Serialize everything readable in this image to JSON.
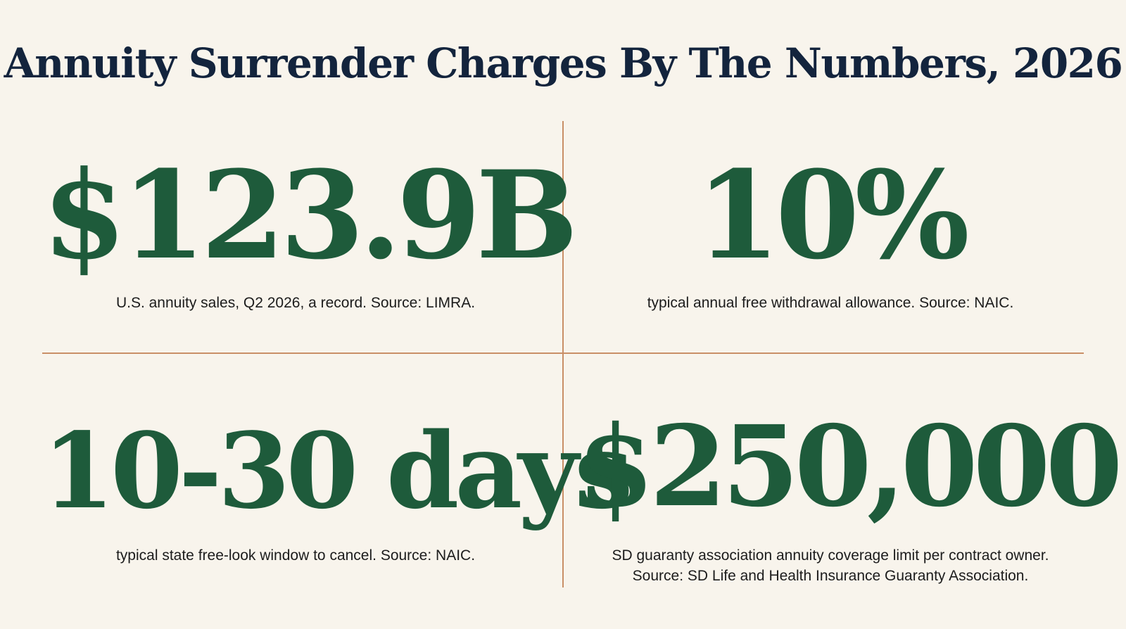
{
  "title": "Annuity Surrender Charges By The Numbers, 2026",
  "stats": [
    {
      "value": "$123.9B",
      "caption_lines": [
        "U.S. annuity sales, Q2 2026, a record. Source: LIMRA."
      ]
    },
    {
      "value": "10%",
      "caption_lines": [
        "typical annual free withdrawal allowance. Source: NAIC."
      ]
    },
    {
      "value": "10-30 days",
      "caption_lines": [
        "typical state free-look window to cancel. Source: NAIC."
      ]
    },
    {
      "value": "$250,000",
      "caption_lines": [
        "SD guaranty association annuity coverage limit per contract owner.",
        "Source: SD Life and Health Insurance Guaranty Association."
      ]
    }
  ],
  "colors": {
    "background": "#f8f4ec",
    "title": "#13243d",
    "stat_value": "#1e5b3b",
    "caption": "#1c1c1c",
    "divider": "#c98f67"
  }
}
